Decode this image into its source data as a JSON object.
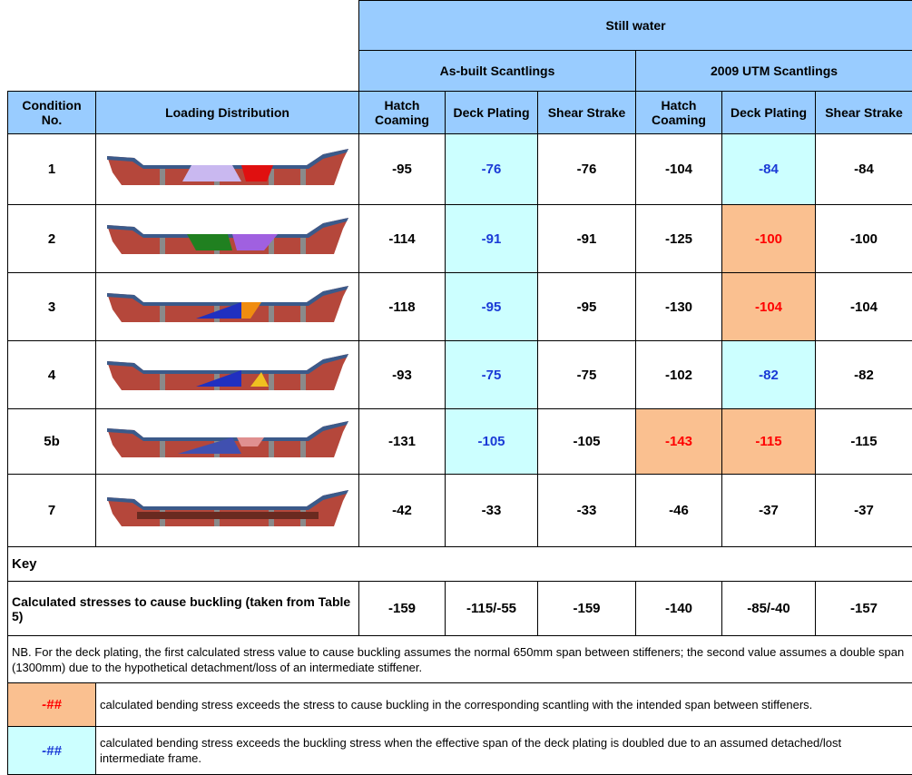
{
  "header": {
    "group": "Still water",
    "subgroups": [
      "As-built Scantlings",
      "2009 UTM Scantlings"
    ],
    "columns": [
      "Condition No.",
      "Loading Distribution",
      "Hatch Coaming",
      "Deck Plating",
      "Shear Strake",
      "Hatch Coaming",
      "Deck Plating",
      "Shear Strake"
    ]
  },
  "table": {
    "rows": [
      [
        "1",
        -95,
        -76,
        -76,
        -104,
        -84,
        -84
      ],
      [
        "2",
        -114,
        -91,
        -91,
        -125,
        -100,
        -100
      ],
      [
        "3",
        -118,
        -95,
        -95,
        -130,
        -104,
        -104
      ],
      [
        "4",
        -93,
        -75,
        -75,
        -102,
        -82,
        -82
      ],
      [
        "5b",
        -131,
        -105,
        -105,
        -143,
        -115,
        -115
      ],
      [
        "7",
        -42,
        -33,
        -33,
        -46,
        -37,
        -37
      ]
    ]
  },
  "key": {
    "title": "Key",
    "buckling_label": "Calculated stresses to cause buckling (taken from Table 5)",
    "buckling_values": [
      -159,
      "-115/-55",
      -159,
      -140,
      "-85/-40",
      -157
    ],
    "note": "NB. For the deck plating, the first calculated stress value to cause buckling assumes the normal 650mm span between stiffeners; the second value assumes a double span (1300mm) due to the hypothetical detachment/loss of an intermediate stiffener.",
    "legend": [
      {
        "sample": "-##",
        "text": "calculated bending stress exceeds the stress to cause buckling in the corresponding scantling with the intended span between stiffeners."
      },
      {
        "sample": "-##",
        "text": "calculated bending stress exceeds the buckling stress when the effective span of the deck plating is doubled due to an assumed detached/lost intermediate frame."
      }
    ]
  }
}
